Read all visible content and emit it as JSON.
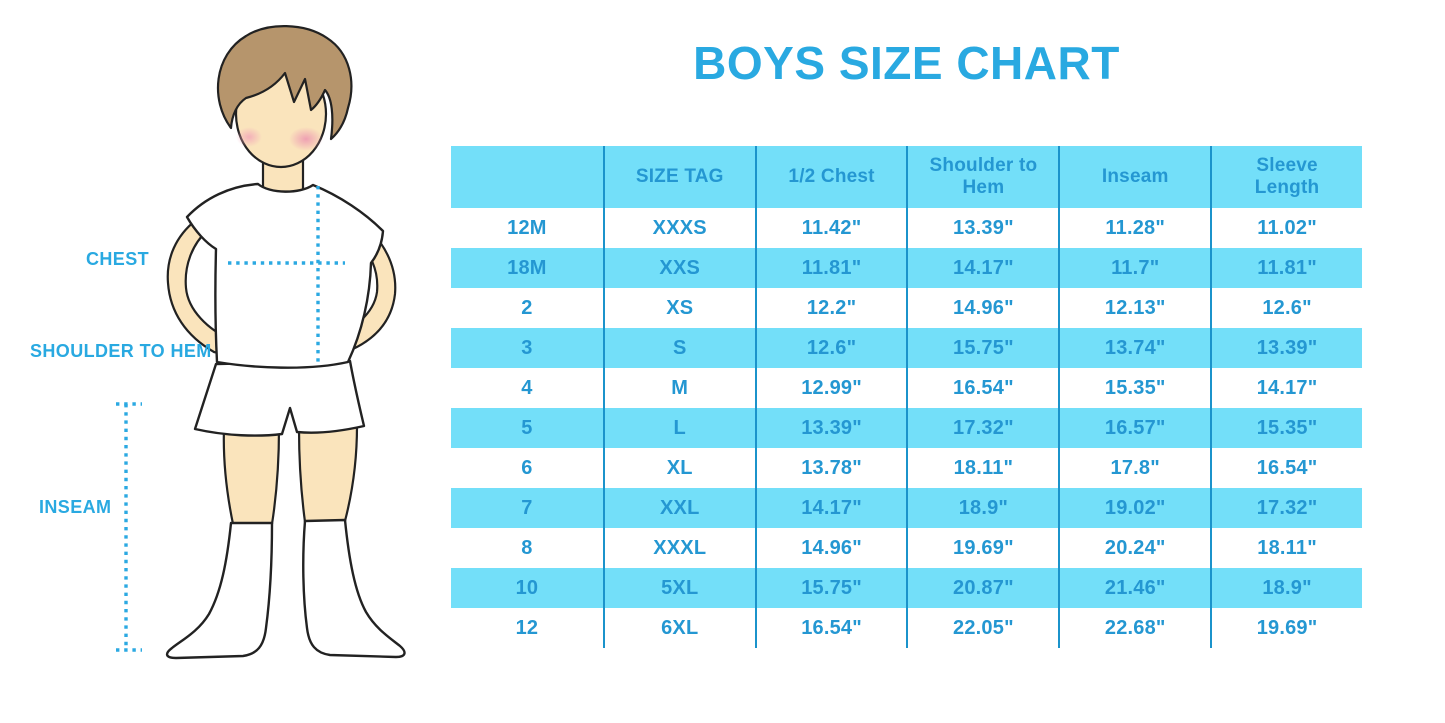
{
  "title": "BOYS SIZE CHART",
  "figure": {
    "labels": {
      "chest": "CHEST",
      "shoulder_to_hem": "SHOULDER TO HEM",
      "inseam": "INSEAM"
    }
  },
  "colors": {
    "accent": "#29A9E1",
    "table-fill": "#73DFF9",
    "table-divider": "#1B93CB",
    "table-text": "#2497D2",
    "dot-line": "#2BA9E2",
    "skin": "#FAE4BC",
    "hair": "#B6956C"
  },
  "chart_data": {
    "type": "table",
    "title": "BOYS SIZE CHART",
    "columns": [
      "",
      "SIZE TAG",
      "1/2 Chest",
      "Shoulder to Hem",
      "Inseam",
      "Sleeve Length"
    ],
    "rows": [
      [
        "12M",
        "XXXS",
        "11.42\"",
        "13.39\"",
        "11.28\"",
        "11.02\""
      ],
      [
        "18M",
        "XXS",
        "11.81\"",
        "14.17\"",
        "11.7\"",
        "11.81\""
      ],
      [
        "2",
        "XS",
        "12.2\"",
        "14.96\"",
        "12.13\"",
        "12.6\""
      ],
      [
        "3",
        "S",
        "12.6\"",
        "15.75\"",
        "13.74\"",
        "13.39\""
      ],
      [
        "4",
        "M",
        "12.99\"",
        "16.54\"",
        "15.35\"",
        "14.17\""
      ],
      [
        "5",
        "L",
        "13.39\"",
        "17.32\"",
        "16.57\"",
        "15.35\""
      ],
      [
        "6",
        "XL",
        "13.78\"",
        "18.11\"",
        "17.8\"",
        "16.54\""
      ],
      [
        "7",
        "XXL",
        "14.17\"",
        "18.9\"",
        "19.02\"",
        "17.32\""
      ],
      [
        "8",
        "XXXL",
        "14.96\"",
        "19.69\"",
        "20.24\"",
        "18.11\""
      ],
      [
        "10",
        "5XL",
        "15.75\"",
        "20.87\"",
        "21.46\"",
        "18.9\""
      ],
      [
        "12",
        "6XL",
        "16.54\"",
        "22.05\"",
        "22.68\"",
        "19.69\""
      ]
    ],
    "layout": {
      "header_fill": "#73DFF9",
      "alt_row_fill": "#73DFF9",
      "row_fill": "#FFFFFF",
      "grid": "vertical-dividers-only"
    }
  }
}
